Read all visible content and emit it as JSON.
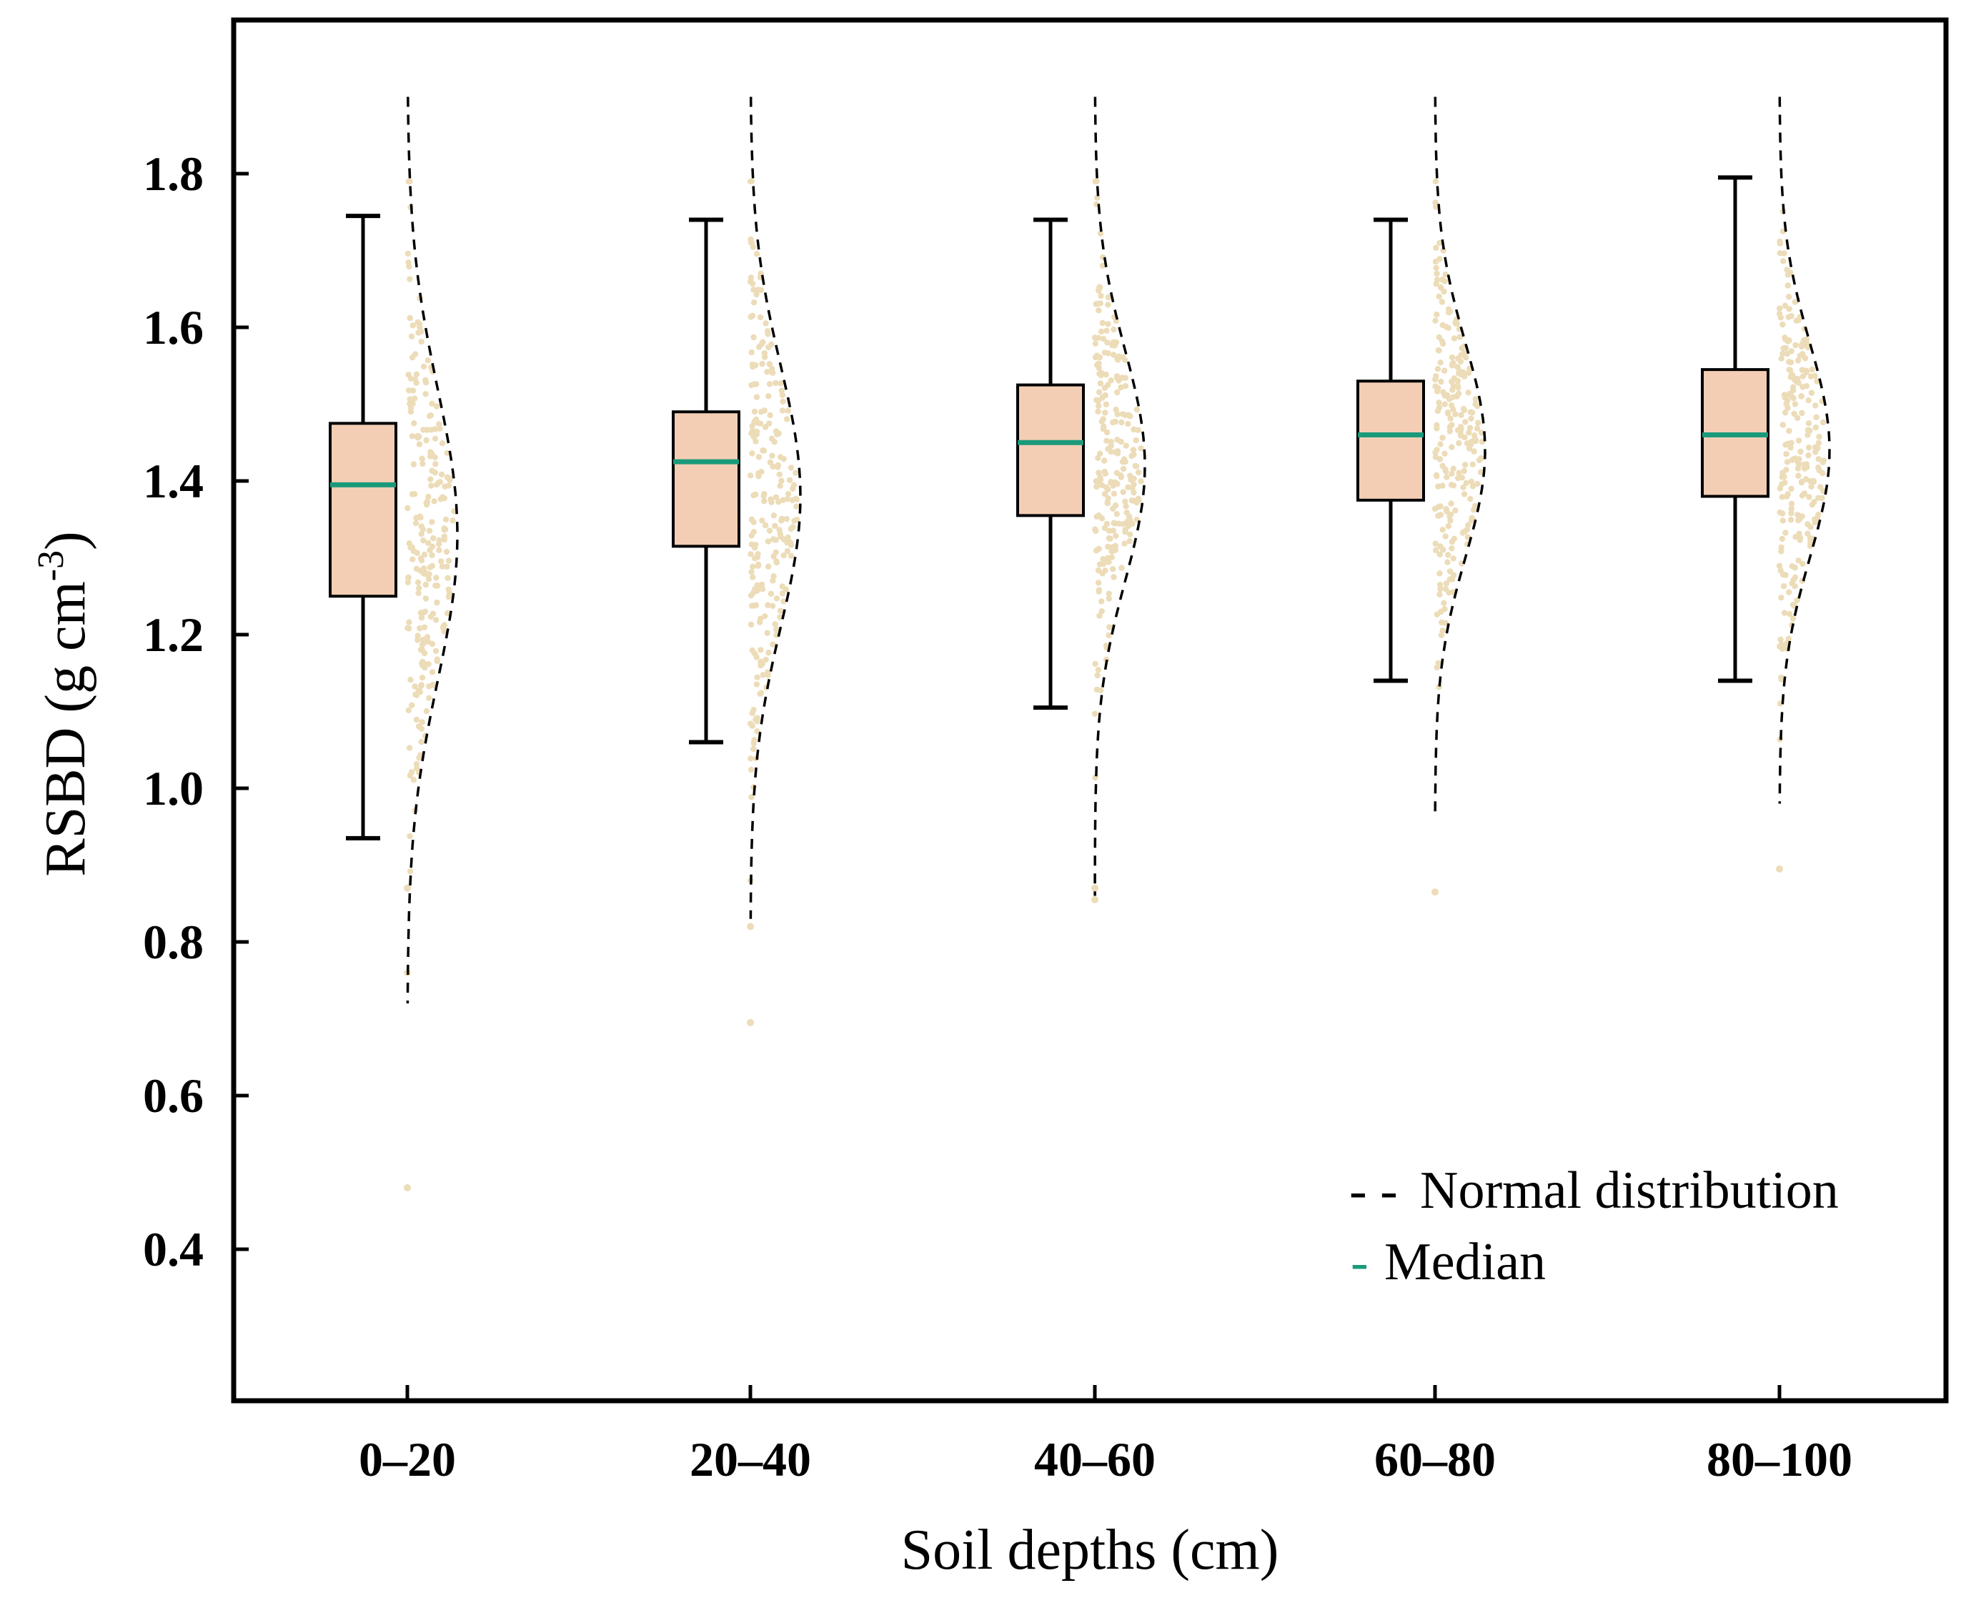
{
  "chart_data": {
    "type": "boxplot",
    "title": "",
    "xlabel": "Soil depths (cm)",
    "ylabel": {
      "main": "RSBD (g cm",
      "superscript": "-3",
      "close": ")"
    },
    "ylim": [
      0.2,
      2.0
    ],
    "yticks": [
      {
        "value": 0.4,
        "label": "0.4"
      },
      {
        "value": 0.6,
        "label": "0.6"
      },
      {
        "value": 0.8,
        "label": "0.8"
      },
      {
        "value": 1.0,
        "label": "1.0"
      },
      {
        "value": 1.2,
        "label": "1.2"
      },
      {
        "value": 1.4,
        "label": "1.4"
      },
      {
        "value": 1.6,
        "label": "1.6"
      },
      {
        "value": 1.8,
        "label": "1.8"
      }
    ],
    "categories": [
      "0–20",
      "20–40",
      "40–60",
      "60–80",
      "80–100"
    ],
    "boxes": [
      {
        "category": "0–20",
        "whisker_low": 0.935,
        "q1": 1.25,
        "median": 1.395,
        "q3": 1.475,
        "whisker_high": 1.745
      },
      {
        "category": "20–40",
        "whisker_low": 1.06,
        "q1": 1.315,
        "median": 1.425,
        "q3": 1.49,
        "whisker_high": 1.74
      },
      {
        "category": "40–60",
        "whisker_low": 1.105,
        "q1": 1.355,
        "median": 1.45,
        "q3": 1.525,
        "whisker_high": 1.74
      },
      {
        "category": "60–80",
        "whisker_low": 1.14,
        "q1": 1.375,
        "median": 1.46,
        "q3": 1.53,
        "whisker_high": 1.74
      },
      {
        "category": "80–100",
        "whisker_low": 1.14,
        "q1": 1.38,
        "median": 1.46,
        "q3": 1.545,
        "whisker_high": 1.795
      }
    ],
    "normal_fits": [
      {
        "category": "0–20",
        "mean": 1.33,
        "sd": 0.19,
        "range": [
          0.72,
          1.9
        ]
      },
      {
        "category": "20–40",
        "mean": 1.38,
        "sd": 0.17,
        "range": [
          0.83,
          1.9
        ]
      },
      {
        "category": "40–60",
        "mean": 1.42,
        "sd": 0.15,
        "range": [
          0.86,
          1.9
        ]
      },
      {
        "category": "60–80",
        "mean": 1.44,
        "sd": 0.14,
        "range": [
          0.97,
          1.9
        ]
      },
      {
        "category": "80–100",
        "mean": 1.44,
        "sd": 0.14,
        "range": [
          0.98,
          1.9
        ]
      }
    ],
    "outliers": [
      {
        "category": "0–20",
        "values": [
          0.48,
          0.76,
          0.87
        ]
      },
      {
        "category": "20–40",
        "values": [
          0.695,
          0.82
        ]
      },
      {
        "category": "40–60",
        "values": [
          0.855,
          0.87
        ]
      },
      {
        "category": "60–80",
        "values": [
          0.865
        ]
      },
      {
        "category": "80–100",
        "values": [
          0.895
        ]
      }
    ],
    "legend": {
      "position": "bottom-right",
      "entries": [
        {
          "marker": "- -",
          "label": "Normal distribution",
          "style": "dashed"
        },
        {
          "marker": "-",
          "label": "Median",
          "style": "solid"
        }
      ]
    },
    "colors": {
      "box_fill": "#f3ceb5",
      "median": "#1a9a7a",
      "points": "#ecdcb8",
      "frame": "#000000"
    }
  }
}
